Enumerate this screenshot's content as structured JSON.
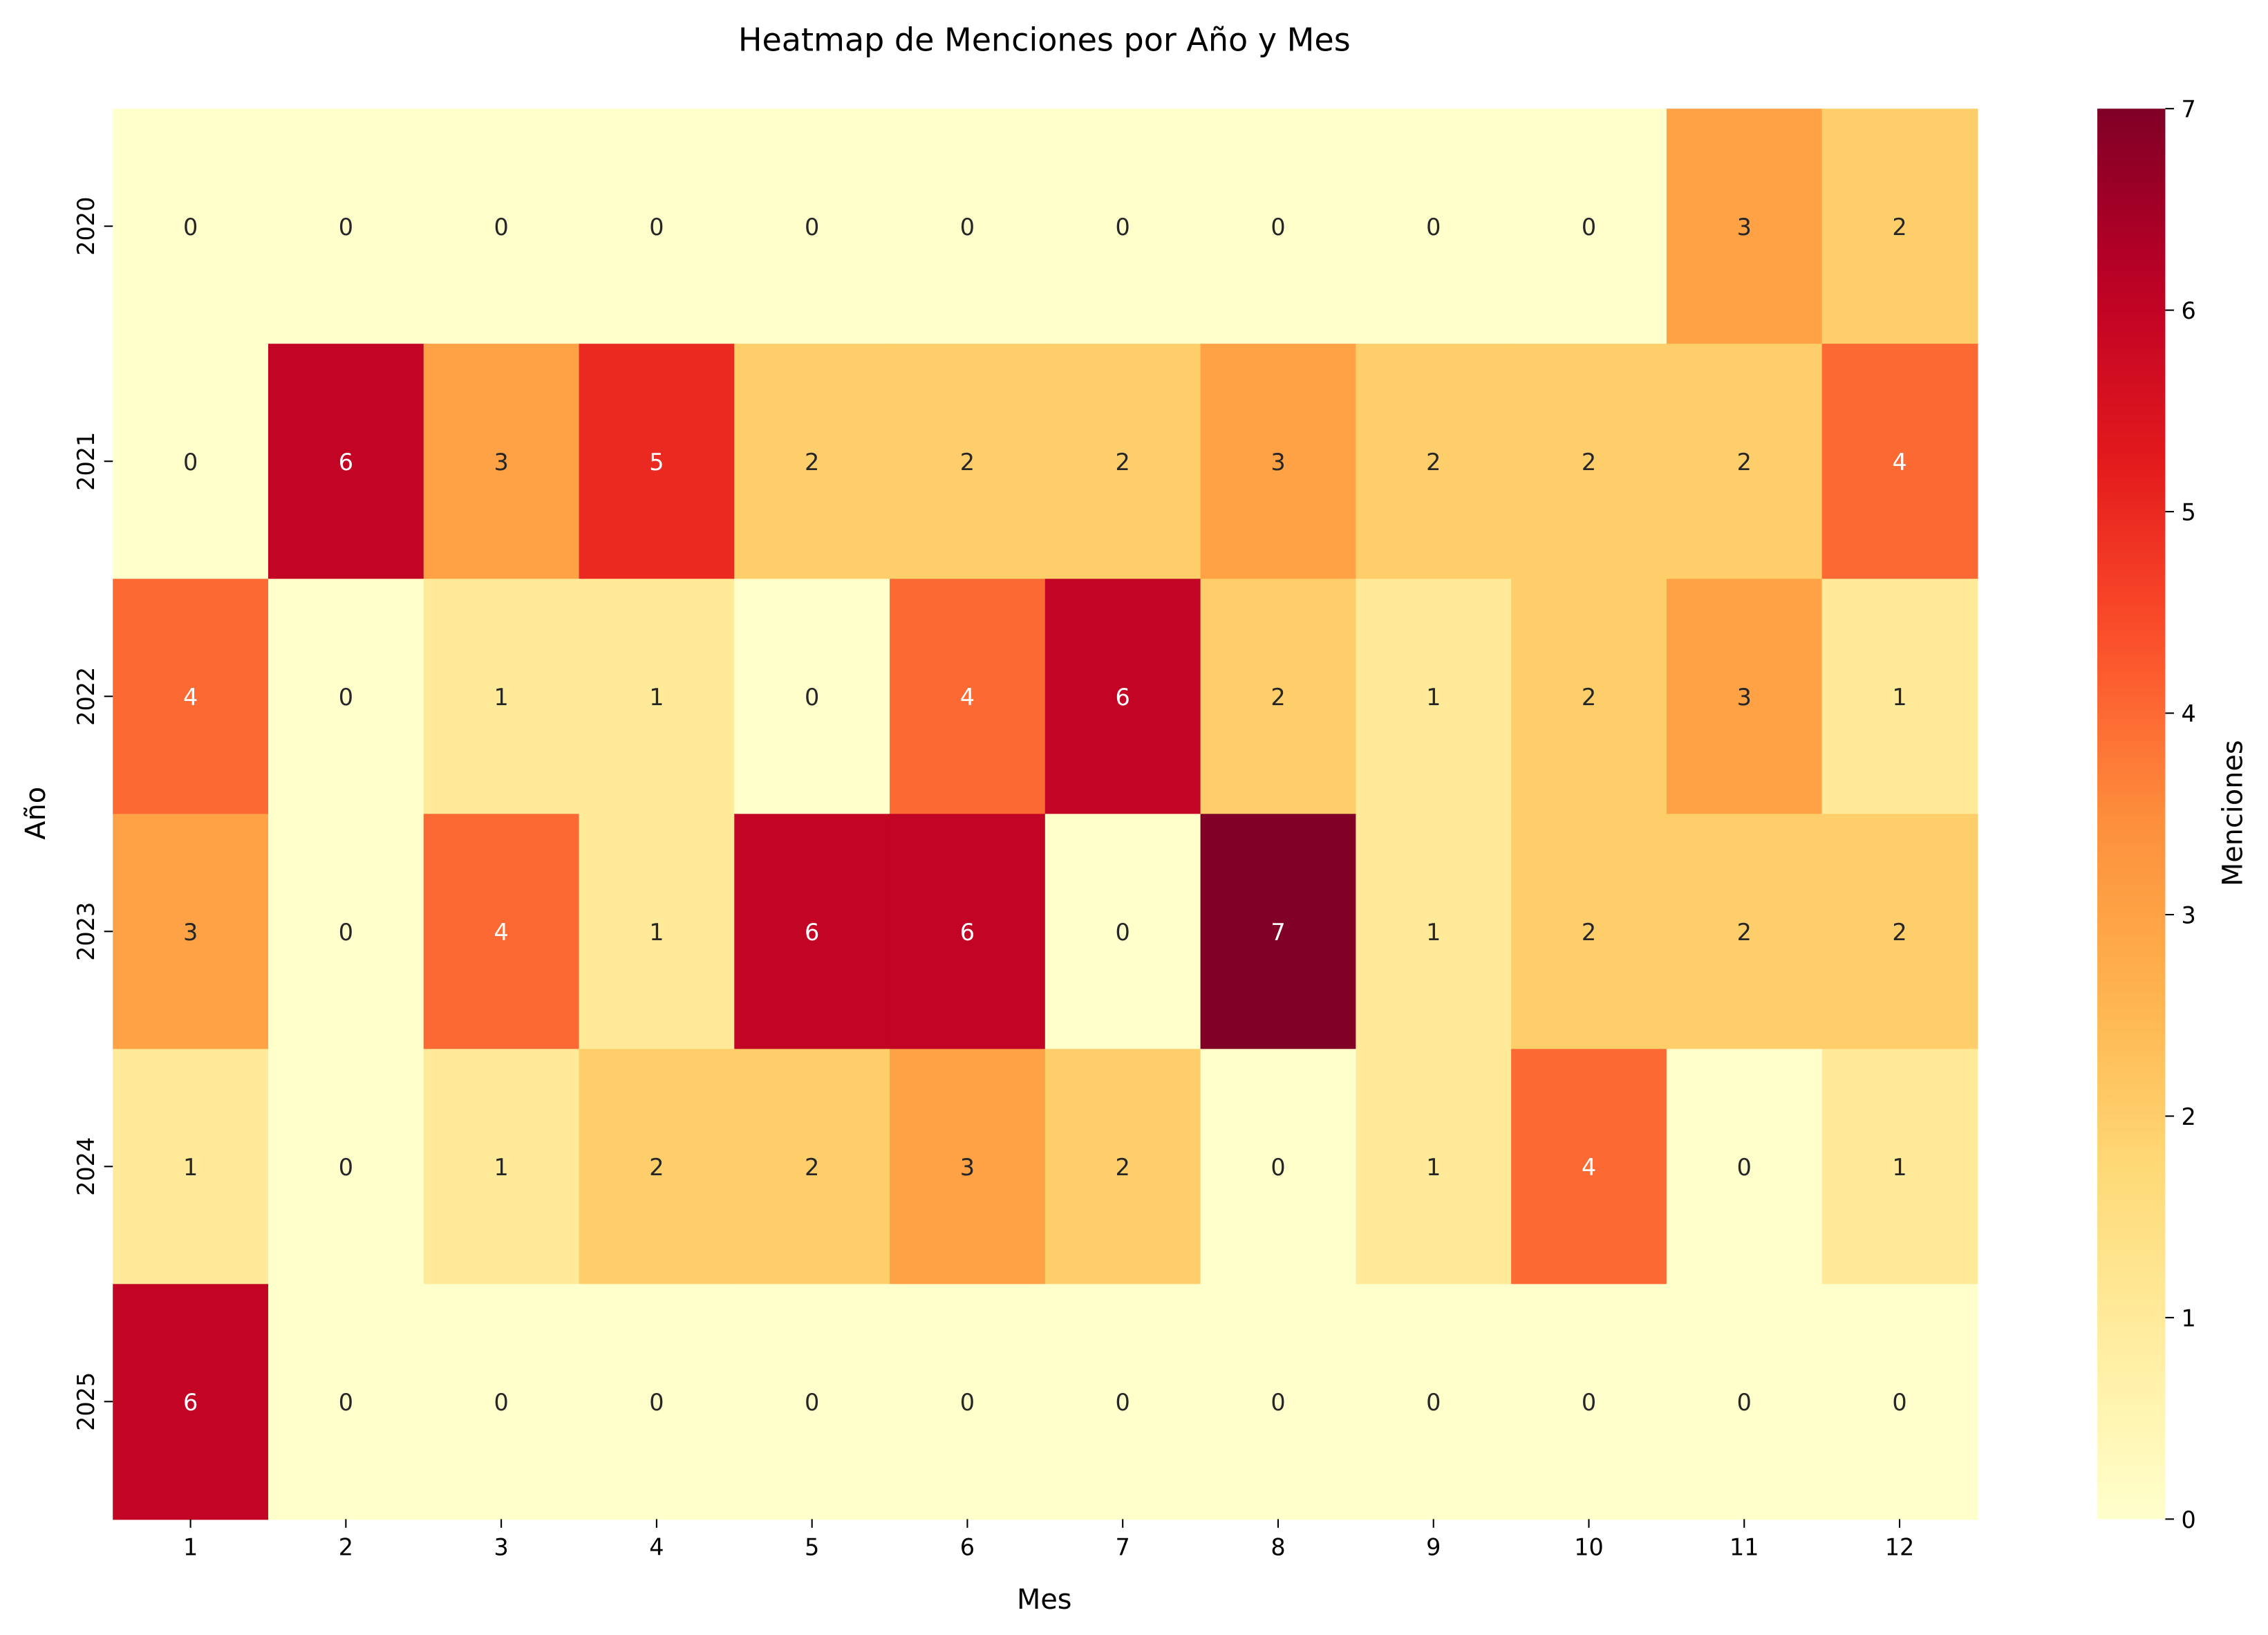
{
  "chart_data": {
    "type": "heatmap",
    "title": "Heatmap de Menciones por Año y Mes",
    "xlabel": "Mes",
    "ylabel": "Año",
    "x_categories": [
      "1",
      "2",
      "3",
      "4",
      "5",
      "6",
      "7",
      "8",
      "9",
      "10",
      "11",
      "12"
    ],
    "y_categories": [
      "2020",
      "2021",
      "2022",
      "2023",
      "2024",
      "2025"
    ],
    "values": [
      [
        0,
        0,
        0,
        0,
        0,
        0,
        0,
        0,
        0,
        0,
        3,
        2
      ],
      [
        0,
        6,
        3,
        5,
        2,
        2,
        2,
        3,
        2,
        2,
        2,
        4
      ],
      [
        4,
        0,
        1,
        1,
        0,
        4,
        6,
        2,
        1,
        2,
        3,
        1
      ],
      [
        3,
        0,
        4,
        1,
        6,
        6,
        0,
        7,
        1,
        2,
        2,
        2
      ],
      [
        1,
        0,
        1,
        2,
        2,
        3,
        2,
        0,
        1,
        4,
        0,
        1
      ],
      [
        6,
        0,
        0,
        0,
        0,
        0,
        0,
        0,
        0,
        0,
        0,
        0
      ]
    ],
    "colormap": "YlOrRd",
    "colorbar": {
      "label": "Menciones",
      "range": [
        0,
        7
      ],
      "ticks": [
        "0",
        "1",
        "2",
        "3",
        "4",
        "5",
        "6",
        "7"
      ]
    },
    "annotations": true,
    "grid": false
  }
}
